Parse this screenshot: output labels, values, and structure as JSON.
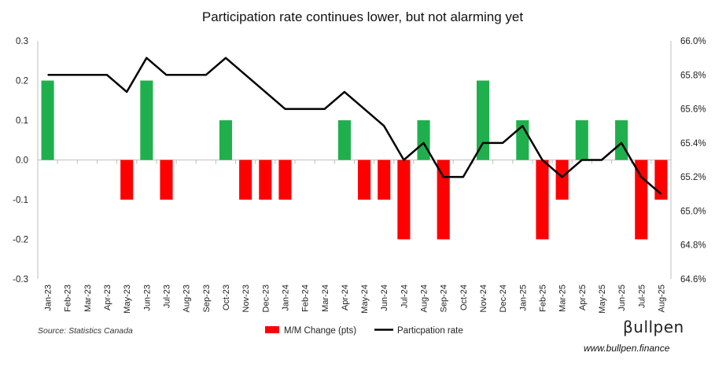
{
  "chart_data": {
    "type": "bar",
    "title": "Participation rate continues lower, but not alarming yet",
    "categories": [
      "Jan-23",
      "Feb-23",
      "Mar-23",
      "Apr-23",
      "May-23",
      "Jun-23",
      "Jul-23",
      "Aug-23",
      "Sep-23",
      "Oct-23",
      "Nov-23",
      "Dec-23",
      "Jan-24",
      "Feb-24",
      "Mar-24",
      "Apr-24",
      "May-24",
      "Jun-24",
      "Jul-24",
      "Aug-24",
      "Sep-24",
      "Oct-24",
      "Nov-24",
      "Dec-24",
      "Jan-25",
      "Feb-25",
      "Mar-25",
      "Apr-25",
      "May-25",
      "Jun-25",
      "Jul-25",
      "Aug-25"
    ],
    "series": [
      {
        "name": "M/M Change (pts)",
        "type": "bar",
        "axis": "left",
        "values": [
          0.2,
          0,
          0,
          0,
          -0.1,
          0.2,
          -0.1,
          0,
          0,
          0.1,
          -0.1,
          -0.1,
          -0.1,
          0,
          0,
          0.1,
          -0.1,
          -0.1,
          -0.2,
          0.1,
          -0.2,
          0,
          0.2,
          0,
          0.1,
          -0.2,
          -0.1,
          0.1,
          0,
          0.1,
          -0.2,
          -0.1
        ]
      },
      {
        "name": "Particpation rate",
        "type": "line",
        "axis": "right",
        "values": [
          65.8,
          65.8,
          65.8,
          65.8,
          65.7,
          65.9,
          65.8,
          65.8,
          65.8,
          65.9,
          65.8,
          65.7,
          65.6,
          65.6,
          65.6,
          65.7,
          65.6,
          65.5,
          65.3,
          65.4,
          65.2,
          65.2,
          65.4,
          65.4,
          65.5,
          65.3,
          65.2,
          65.3,
          65.3,
          65.4,
          65.2,
          65.1
        ]
      }
    ],
    "y_left": {
      "ylim": [
        -0.3,
        0.3
      ],
      "ticks": [
        "0.3",
        "0.2",
        "0.1",
        "0.0",
        "-0.1",
        "-0.2",
        "-0.3"
      ]
    },
    "y_right": {
      "ylim": [
        64.6,
        66.0
      ],
      "ticks": [
        "66.0%",
        "65.8%",
        "65.6%",
        "65.4%",
        "65.2%",
        "65.0%",
        "64.8%",
        "64.6%"
      ]
    },
    "grid": false,
    "legend_position": "bottom-center",
    "colors": {
      "positive_bar": "#1fb04d",
      "negative_bar": "#ff0000",
      "line": "#000000",
      "legend_bar": "#ff0000"
    }
  },
  "footer": {
    "source": "Source: Statistics Canada",
    "brand": "βullpen",
    "website": "www.bullpen.finance"
  }
}
